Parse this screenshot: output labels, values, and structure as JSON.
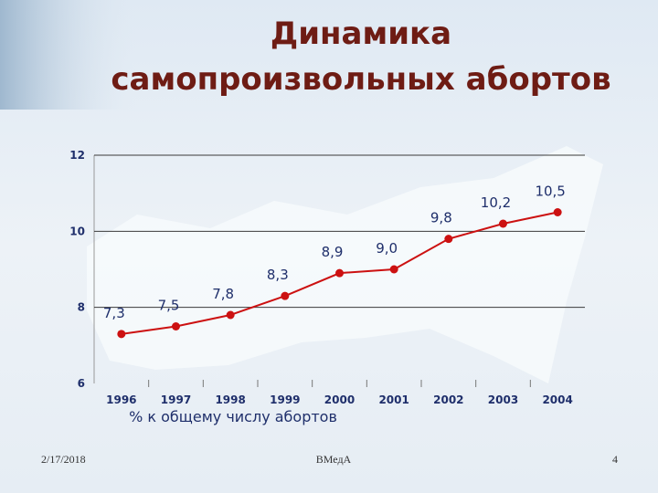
{
  "chart_data": {
    "type": "line",
    "title": [
      "Динамика",
      "самопроизвольных абортов"
    ],
    "x_label": "% к общему числу абортов",
    "categories": [
      "1996",
      "1997",
      "1998",
      "1999",
      "2000",
      "2001",
      "2002",
      "2003",
      "2004"
    ],
    "series": [
      {
        "color": "#cc1111",
        "values": [
          7.3,
          7.5,
          7.8,
          8.3,
          8.9,
          9.0,
          9.8,
          10.2,
          10.5
        ],
        "value_labels": [
          "7,3",
          "7,5",
          "7,8",
          "8,3",
          "8,9",
          "9,0",
          "9,8",
          "10,2",
          "10,5"
        ]
      }
    ],
    "ylim": [
      6,
      12
    ],
    "yticks": [
      6,
      8,
      10,
      12
    ],
    "grid": true
  },
  "footer": {
    "date": "2/17/2018",
    "center": "ВМедА",
    "page": "4"
  }
}
